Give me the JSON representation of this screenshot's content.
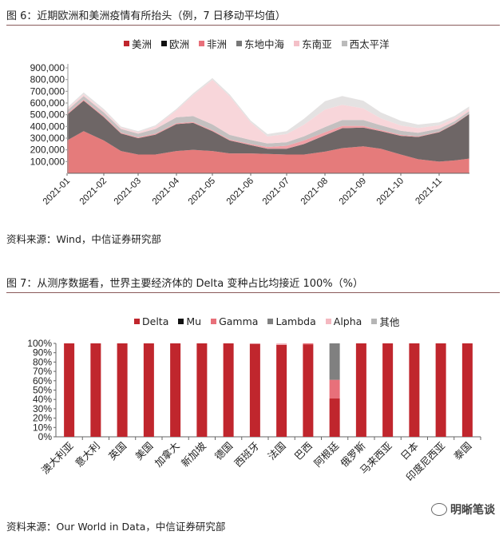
{
  "fig6": {
    "title": "图 6：近期欧洲和美洲疫情有所抬头（例，7 日移动平均值）",
    "source": "资料来源：Wind，中信证券研究部"
  },
  "fig7": {
    "title": "图 7：从测序数据看，世界主要经济体的 Delta 变种占比均接近 100%（%）",
    "source": "资料来源：Our World in Data，中信证券研究部"
  },
  "watermark": "明晰笔谈",
  "chart_data": [
    {
      "type": "area",
      "stacked": true,
      "title": "近期欧洲和美洲疫情有所抬头（例，7 日移动平均值）",
      "x": [
        "2021-01-01",
        "2021-01-15",
        "2021-02-01",
        "2021-02-15",
        "2021-03-01",
        "2021-03-15",
        "2021-04-01",
        "2021-04-15",
        "2021-05-01",
        "2021-05-15",
        "2021-06-01",
        "2021-06-15",
        "2021-07-01",
        "2021-07-15",
        "2021-08-01",
        "2021-08-15",
        "2021-09-01",
        "2021-09-15",
        "2021-10-01",
        "2021-10-15",
        "2021-11-01",
        "2021-11-15",
        "2021-11-28"
      ],
      "x_ticks": [
        "2021-01",
        "2021-02",
        "2021-03",
        "2021-04",
        "2021-05",
        "2021-06",
        "2021-07",
        "2021-08",
        "2021-09",
        "2021-10",
        "2021-11"
      ],
      "y_ticks": [
        "100,000",
        "200,000",
        "300,000",
        "400,000",
        "500,000",
        "600,000",
        "700,000",
        "800,000",
        "900,000"
      ],
      "ylim": [
        0,
        900000
      ],
      "legend_position": "top-center",
      "series": [
        {
          "name": "美洲",
          "color": "#c0262d",
          "fill": "#e57b7b",
          "values": [
            280000,
            360000,
            280000,
            190000,
            160000,
            160000,
            190000,
            200000,
            190000,
            170000,
            170000,
            165000,
            160000,
            160000,
            185000,
            215000,
            230000,
            210000,
            160000,
            120000,
            100000,
            110000,
            125000
          ]
        },
        {
          "name": "欧洲",
          "color": "#111111",
          "fill": "#6e6666",
          "values": [
            220000,
            260000,
            200000,
            150000,
            140000,
            170000,
            230000,
            230000,
            170000,
            110000,
            70000,
            45000,
            50000,
            90000,
            140000,
            170000,
            160000,
            150000,
            160000,
            190000,
            250000,
            310000,
            380000
          ]
        },
        {
          "name": "非洲",
          "color": "#e8707a",
          "fill": "#f0a0a6",
          "values": [
            10000,
            10000,
            10000,
            8000,
            8000,
            8000,
            8000,
            8000,
            8000,
            8000,
            10000,
            15000,
            25000,
            30000,
            25000,
            20000,
            15000,
            10000,
            8000,
            6000,
            5000,
            5000,
            5000
          ]
        },
        {
          "name": "东地中海",
          "color": "#777777",
          "fill": "#c4c0c0",
          "values": [
            25000,
            30000,
            30000,
            30000,
            30000,
            40000,
            50000,
            50000,
            50000,
            40000,
            35000,
            30000,
            30000,
            35000,
            45000,
            50000,
            50000,
            40000,
            35000,
            30000,
            25000,
            20000,
            20000
          ]
        },
        {
          "name": "东南亚",
          "color": "#f4c0c8",
          "fill": "#f8d6da",
          "values": [
            15000,
            15000,
            15000,
            12000,
            12000,
            20000,
            60000,
            180000,
            380000,
            330000,
            150000,
            60000,
            70000,
            100000,
            150000,
            130000,
            100000,
            60000,
            45000,
            40000,
            30000,
            25000,
            20000
          ]
        },
        {
          "name": "西太平洋",
          "color": "#bbbbbb",
          "fill": "#e4e2e2",
          "values": [
            10000,
            15000,
            15000,
            10000,
            10000,
            12000,
            12000,
            15000,
            15000,
            15000,
            15000,
            20000,
            25000,
            50000,
            70000,
            75000,
            65000,
            50000,
            40000,
            30000,
            25000,
            20000,
            20000
          ]
        }
      ]
    },
    {
      "type": "bar",
      "stacked": true,
      "title": "从测序数据看，世界主要经济体的 Delta 变种占比均接近 100%（%）",
      "categories": [
        "澳大利亚",
        "意大利",
        "英国",
        "美国",
        "加拿大",
        "新加坡",
        "德国",
        "西班牙",
        "法国",
        "巴西",
        "阿根廷",
        "俄罗斯",
        "马来西亚",
        "日本",
        "印度尼西亚",
        "泰国"
      ],
      "y_ticks": [
        "0%",
        "10%",
        "20%",
        "30%",
        "40%",
        "50%",
        "60%",
        "70%",
        "80%",
        "90%",
        "100%"
      ],
      "ylim": [
        0,
        100
      ],
      "legend_position": "top-center",
      "series": [
        {
          "name": "Delta",
          "color": "#c0262d",
          "values": [
            100,
            100,
            100,
            100,
            100,
            100,
            100,
            99.5,
            98.5,
            99,
            41,
            100,
            100,
            100,
            100,
            100
          ]
        },
        {
          "name": "Mu",
          "color": "#111111",
          "values": [
            0,
            0,
            0,
            0,
            0,
            0,
            0,
            0,
            0,
            0,
            0,
            0,
            0,
            0,
            0,
            0
          ]
        },
        {
          "name": "Gamma",
          "color": "#e8707a",
          "values": [
            0,
            0,
            0,
            0,
            0,
            0,
            0,
            0,
            0,
            1,
            20,
            0,
            0,
            0,
            0,
            0
          ]
        },
        {
          "name": "Lambda",
          "color": "#808080",
          "values": [
            0,
            0,
            0,
            0,
            0,
            0,
            0,
            0,
            0,
            0,
            39,
            0,
            0,
            0,
            0,
            0
          ]
        },
        {
          "name": "Alpha",
          "color": "#f4b8c0",
          "values": [
            0,
            0,
            0,
            0,
            0,
            0,
            0,
            0.5,
            1.5,
            0,
            0,
            0,
            0,
            0,
            0,
            0
          ]
        },
        {
          "name": "其他",
          "color": "#b5b5b5",
          "values": [
            0,
            0,
            0,
            0,
            0,
            0,
            0,
            0,
            0,
            0,
            0,
            0,
            0,
            0,
            0,
            0
          ]
        }
      ]
    }
  ]
}
